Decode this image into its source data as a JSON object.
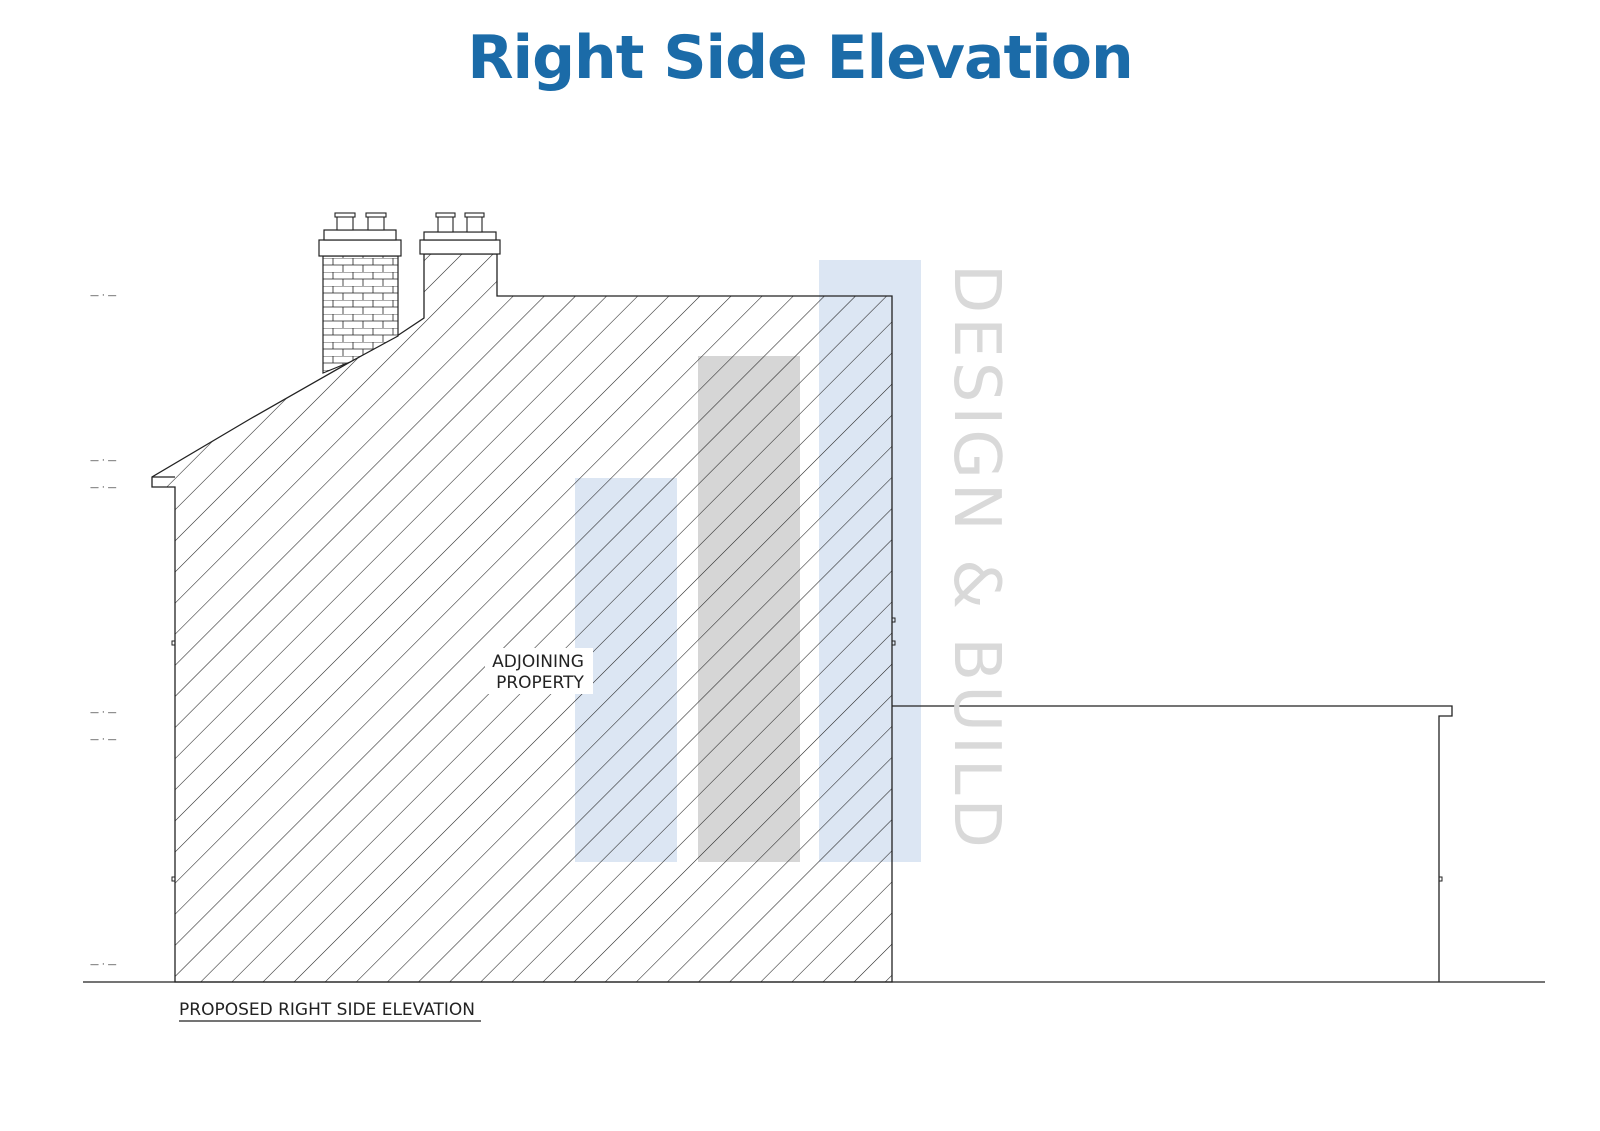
{
  "title": "Right Side Elevation",
  "colors": {
    "title": "#1b6ba8",
    "line": "#222222",
    "watermark_blue": "#dce6f3",
    "watermark_grey": "#d6d6d6",
    "watermark_text": "#d9d9d9"
  },
  "drawing": {
    "adjoining_label_line1": "ADJOINING",
    "adjoining_label_line2": "PROPERTY",
    "caption": "PROPOSED RIGHT SIDE ELEVATION",
    "level_markers": [
      "— · —",
      "— · —",
      "— · —",
      "— · —",
      "— · —",
      "— · —"
    ]
  },
  "watermark": {
    "text": "DESIGN & BUILD",
    "icons": [
      "logo-block-icon"
    ]
  }
}
